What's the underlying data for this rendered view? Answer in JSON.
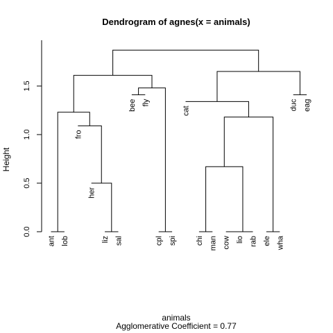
{
  "chart_data": {
    "type": "dendrogram",
    "title": "Dendrogram of  agnes(x = animals)",
    "xlabel": "animals",
    "subtitle": "Agglomerative Coefficient =  0.77",
    "ylabel": "Height",
    "ylim": [
      0,
      1.85
    ],
    "yticks": [
      "0.0",
      "0.5",
      "1.0",
      "1.5"
    ],
    "leaves": [
      "ant",
      "lob",
      "fro",
      "her",
      "liz",
      "sal",
      "bee",
      "fly",
      "cpl",
      "spi",
      "cat",
      "chi",
      "man",
      "cow",
      "lio",
      "rab",
      "ele",
      "wha",
      "duc",
      "eag"
    ],
    "merges": [
      {
        "a": "ant",
        "b": "lob",
        "height": 0.0,
        "id": "m1"
      },
      {
        "a": "liz",
        "b": "sal",
        "height": 0.0,
        "id": "m2"
      },
      {
        "a": "cpl",
        "b": "spi",
        "height": 0.0,
        "id": "m3"
      },
      {
        "a": "chi",
        "b": "man",
        "height": 0.0,
        "id": "m4"
      },
      {
        "a": "cow",
        "b": "lio",
        "height": 0.0,
        "id": "m5"
      },
      {
        "a": "m5",
        "b": "rab",
        "height": 0.0,
        "id": "m6"
      },
      {
        "a": "ele",
        "b": "wha",
        "height": 0.0,
        "id": "m7"
      },
      {
        "a": "her",
        "b": "m2",
        "height": 0.5,
        "id": "m8"
      },
      {
        "a": "m4",
        "b": "m6",
        "height": 0.67,
        "id": "m9"
      },
      {
        "a": "fro",
        "b": "m8",
        "height": 1.09,
        "id": "m10"
      },
      {
        "a": "m9",
        "b": "m7",
        "height": 1.18,
        "id": "m11"
      },
      {
        "a": "m1",
        "b": "m10",
        "height": 1.23,
        "id": "m12"
      },
      {
        "a": "cat",
        "b": "m11",
        "height": 1.34,
        "id": "m13"
      },
      {
        "a": "bee",
        "b": "fly",
        "height": 1.41,
        "id": "m14"
      },
      {
        "a": "duc",
        "b": "eag",
        "height": 1.41,
        "id": "m15"
      },
      {
        "a": "m14",
        "b": "m3",
        "height": 1.48,
        "id": "m16"
      },
      {
        "a": "m12",
        "b": "m16",
        "height": 1.61,
        "id": "m17"
      },
      {
        "a": "m13",
        "b": "m15",
        "height": 1.65,
        "id": "m18"
      },
      {
        "a": "m17",
        "b": "m18",
        "height": 1.87,
        "id": "m19"
      }
    ]
  }
}
